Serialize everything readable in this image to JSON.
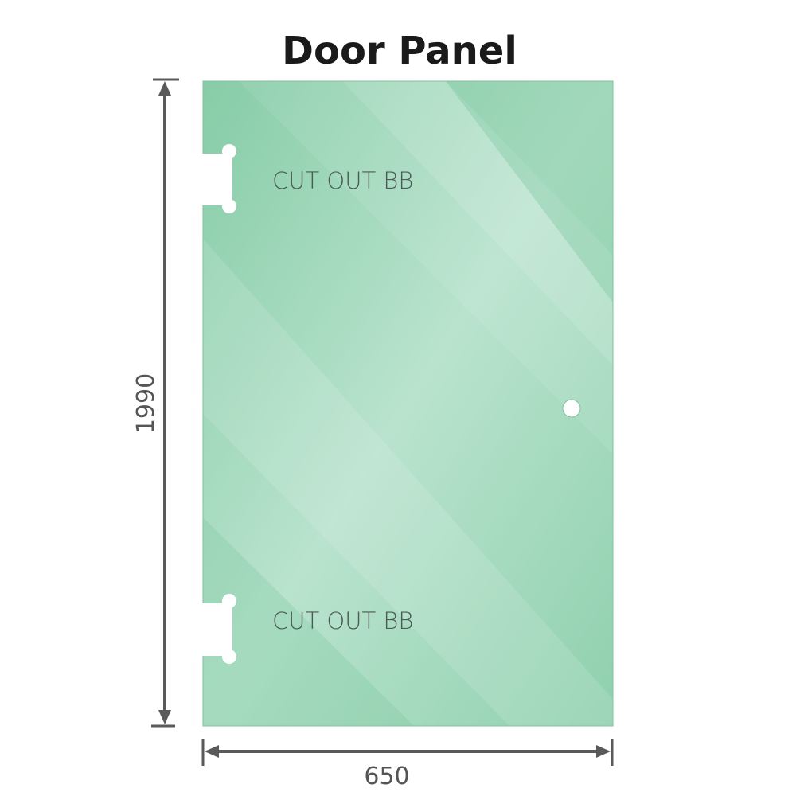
{
  "title": "Door Panel",
  "cutout_top_label": "CUT OUT BB",
  "cutout_bottom_label": "CUT OUT BB",
  "height_dimension": "1990",
  "width_dimension": "650",
  "colors": {
    "glass": "#8ccfac",
    "glass_light": "#b8e4cc",
    "dimension_line": "#5a5a5a",
    "title": "#1a1a1a"
  }
}
